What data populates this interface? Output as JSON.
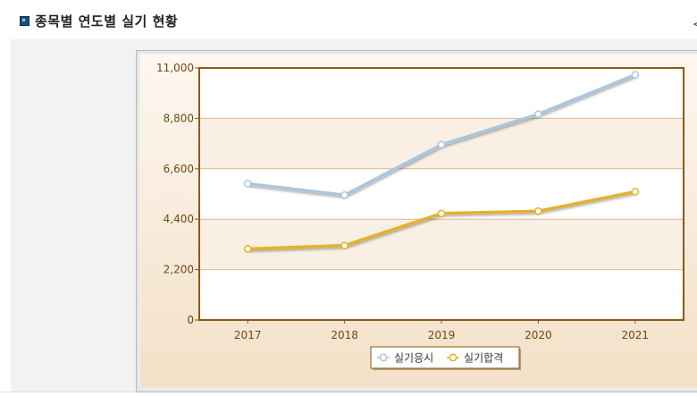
{
  "page": {
    "section_title": "종목별 연도별 실기 현황",
    "right_mark": "<"
  },
  "colors": {
    "frame": "#8a5a12",
    "band": "#f9efe5",
    "grid": "#d8b98c",
    "panel_top": "#fdf7ef",
    "panel_bottom": "#f3e0c8",
    "tick_text": "#6b4a12",
    "series_1": "#a9c6e0",
    "series_2": "#e2b32a"
  },
  "chart_data": {
    "type": "line",
    "title": "",
    "xlabel": "",
    "ylabel": "",
    "categories": [
      "2017",
      "2018",
      "2019",
      "2020",
      "2021"
    ],
    "yticks": [
      "0",
      "2,200",
      "4,400",
      "6,600",
      "8,800",
      "11,000"
    ],
    "ylim": [
      0,
      11000
    ],
    "series": [
      {
        "name": "실기응시",
        "values": [
          5950,
          5450,
          7650,
          8980,
          10700
        ]
      },
      {
        "name": "실기합격",
        "values": [
          3100,
          3250,
          4650,
          4750,
          5600
        ]
      }
    ],
    "legend": "bottom-center",
    "grid": true
  }
}
